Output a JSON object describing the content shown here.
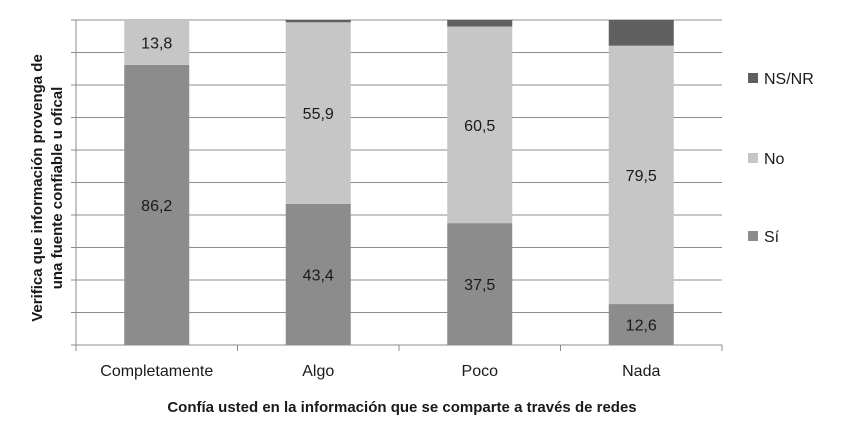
{
  "chart_data": {
    "type": "stacked-bar-100",
    "categories": [
      "Completamente",
      "Algo",
      "Poco",
      "Nada"
    ],
    "series": [
      {
        "name": "Sí",
        "values": [
          86.2,
          43.4,
          37.5,
          12.6
        ],
        "color": "#8c8c8c",
        "labels": [
          "86,2",
          "43,4",
          "37,5",
          "12,6"
        ]
      },
      {
        "name": "No",
        "values": [
          13.8,
          55.9,
          60.5,
          79.5
        ],
        "color": "#c6c6c6",
        "labels": [
          "13,8",
          "55,9",
          "60,5",
          "79,5"
        ]
      },
      {
        "name": "NS/NR",
        "values": [
          0,
          0.7,
          2.0,
          7.9
        ],
        "color": "#5f5f5f",
        "labels": [
          "",
          "",
          "",
          ""
        ]
      }
    ],
    "xlabel": "Confía usted en la información que se comparte a través de redes",
    "ylabel_lines": [
      "Verifica que información provenga de",
      "una fuente confiable u ofical"
    ],
    "ylim": [
      0,
      100
    ],
    "grid": true,
    "legend": "right",
    "legend_order": [
      "NS/NR",
      "No",
      "Sí"
    ]
  }
}
